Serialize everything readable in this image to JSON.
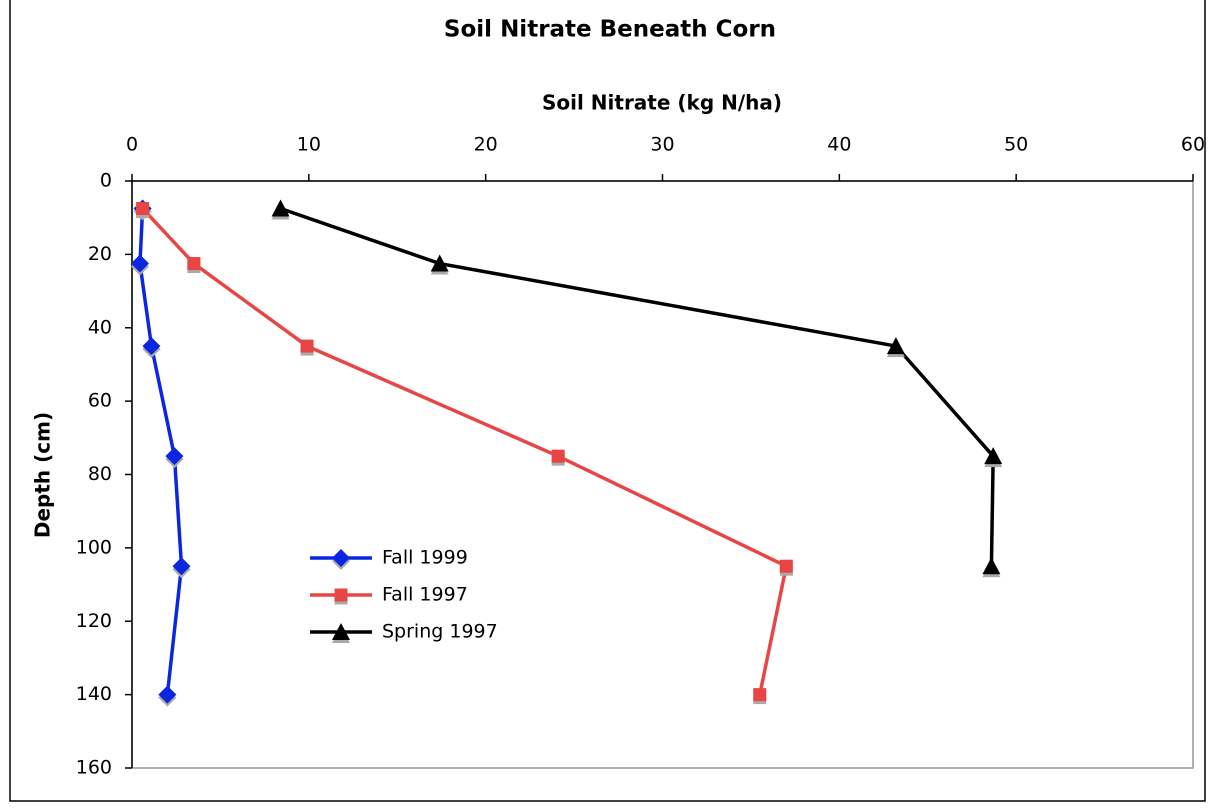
{
  "chart_data": {
    "type": "line",
    "title": "Soil Nitrate Beneath Corn",
    "x_label": "Soil Nitrate (kg N/ha)",
    "y_label": "Depth (cm)",
    "x_axis_position": "top",
    "y_inverted": true,
    "xlim": [
      0,
      60
    ],
    "xticks": [
      0,
      10,
      20,
      30,
      40,
      50,
      60
    ],
    "ylim": [
      0,
      160
    ],
    "yticks": [
      0,
      20,
      40,
      60,
      80,
      100,
      120,
      140,
      160
    ],
    "legend": "lower left",
    "series": [
      {
        "name": "Fall 1999",
        "color": "#0a26e0",
        "marker": "diamond",
        "x": [
          0.6,
          0.45,
          1.1,
          2.4,
          2.8,
          2.0
        ],
        "y": [
          7.5,
          22.5,
          45,
          75,
          105,
          140
        ]
      },
      {
        "name": "Fall 1997",
        "color": "#e84545",
        "marker": "square",
        "x": [
          0.6,
          3.5,
          9.9,
          24.1,
          37.0,
          35.5
        ],
        "y": [
          7.5,
          22.5,
          45,
          75,
          105,
          140
        ]
      },
      {
        "name": "Spring 1997",
        "color": "#000000",
        "marker": "triangle",
        "x": [
          8.4,
          17.4,
          43.2,
          48.7,
          48.6
        ],
        "y": [
          7.5,
          22.5,
          45,
          75,
          105
        ]
      }
    ]
  }
}
